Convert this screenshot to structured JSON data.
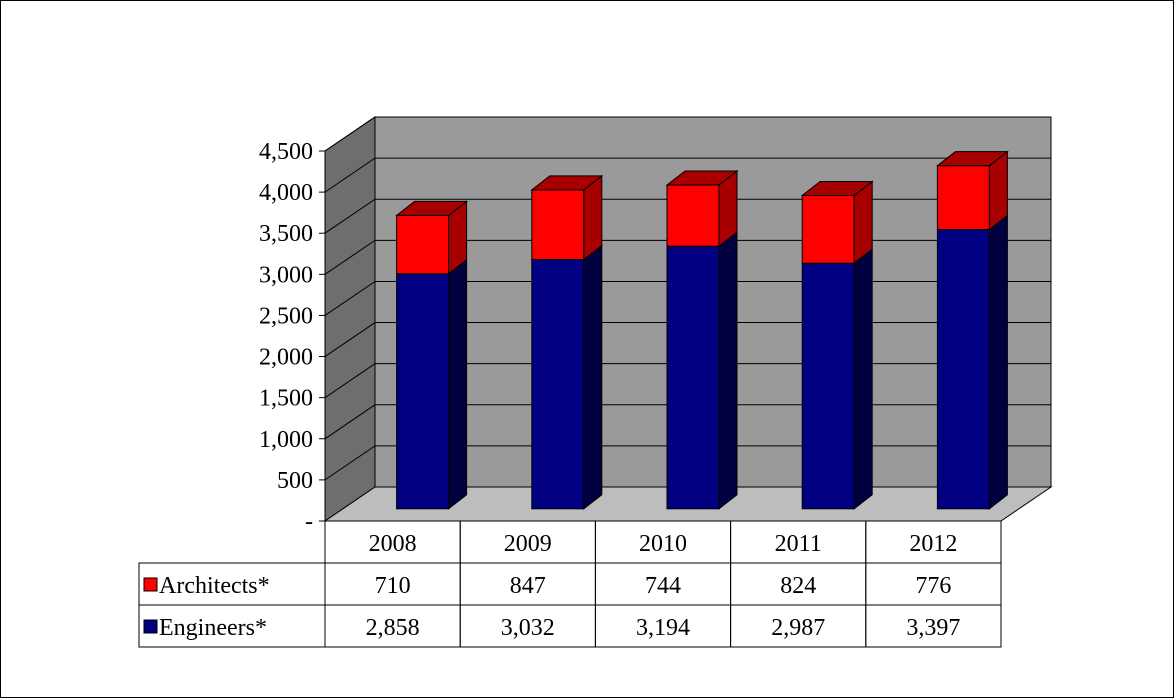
{
  "chart_data": {
    "type": "bar",
    "stacked": true,
    "three_d": true,
    "categories": [
      "2008",
      "2009",
      "2010",
      "2011",
      "2012"
    ],
    "series": [
      {
        "name": "Engineers*",
        "values": [
          2858,
          3032,
          3194,
          2987,
          3397
        ],
        "color": "#000080",
        "side_color": "#000040"
      },
      {
        "name": "Architects*",
        "values": [
          710,
          847,
          744,
          824,
          776
        ],
        "color": "#ff0000",
        "side_color": "#a80000"
      }
    ],
    "ylim": [
      0,
      4500
    ],
    "yticks": [
      0,
      500,
      1000,
      1500,
      2000,
      2500,
      3000,
      3500,
      4000,
      4500
    ],
    "ytick_labels": [
      "-",
      "500",
      "1,000",
      "1,500",
      "2,000",
      "2,500",
      "3,000",
      "3,500",
      "4,000",
      "4,500"
    ],
    "grid": true,
    "data_table": {
      "rows": [
        {
          "label": "Architects*",
          "cells": [
            "710",
            "847",
            "744",
            "824",
            "776"
          ],
          "key_color": "#ff0000"
        },
        {
          "label": "Engineers*",
          "cells": [
            "2,858",
            "3,032",
            "3,194",
            "2,987",
            "3,397"
          ],
          "key_color": "#000080"
        }
      ]
    },
    "colors": {
      "back_wall": "#9a9a9a",
      "side_wall": "#6e6e6e",
      "floor": "#bdbdbd"
    }
  }
}
